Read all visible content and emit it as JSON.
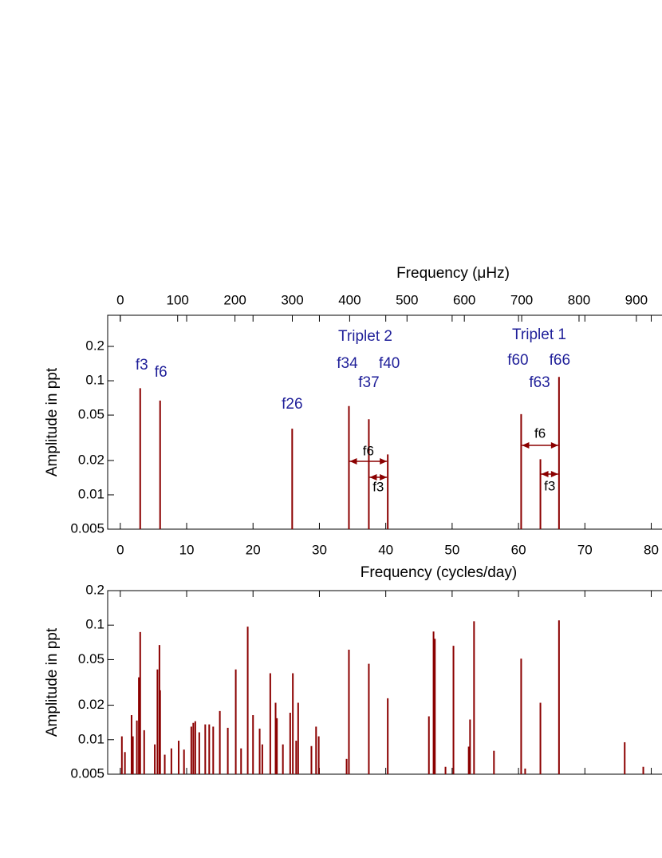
{
  "chart_data": [
    {
      "type": "stem",
      "x_label": "Frequency (cycles/day)",
      "x2_label": "Frequency (μHz)",
      "y_label": "Amplitude in ppt",
      "x": [
        3.0,
        6.0,
        25.9,
        34.45,
        37.45,
        40.3,
        60.4,
        63.3,
        66.1
      ],
      "values": [
        0.086,
        0.067,
        0.038,
        0.06,
        0.046,
        0.0226,
        0.051,
        0.0205,
        0.108
      ],
      "peak_labels": [
        "f3",
        "f6",
        "f26",
        "f34",
        "f37",
        "f40",
        "f60",
        "f63",
        "f66"
      ],
      "group_labels": [
        "Triplet 2",
        "Triplet 1"
      ],
      "spacing_labels": [
        "f6",
        "f3",
        "f6",
        "f3"
      ],
      "color": "#8b0000",
      "label_color": "#1f1f99",
      "log_y": true,
      "grid": false,
      "xlim": [
        -1.9,
        81.5
      ],
      "xticks": [
        0,
        10,
        20,
        30,
        40,
        50,
        60,
        70,
        80
      ],
      "x2lim": [
        -22.0,
        943.3
      ],
      "x2ticks": [
        0,
        100,
        200,
        300,
        400,
        500,
        600,
        700,
        800,
        900
      ],
      "ylim": [
        0.005,
        0.375
      ],
      "yticks": [
        0.005,
        0.01,
        0.02,
        0.05,
        0.1,
        0.2
      ]
    },
    {
      "type": "stem",
      "y_label": "Amplitude in ppt",
      "x": [
        0.24,
        0.7,
        1.7,
        1.9,
        2.5,
        2.8,
        3.0,
        3.6,
        5.2,
        5.6,
        5.9,
        6.0,
        6.7,
        7.7,
        8.8,
        9.6,
        10.7,
        11.0,
        11.3,
        11.9,
        12.8,
        13.4,
        14.0,
        15.0,
        16.2,
        17.4,
        18.2,
        19.2,
        20.0,
        21.0,
        21.4,
        22.6,
        23.4,
        23.6,
        24.5,
        25.6,
        26.0,
        26.5,
        26.8,
        28.8,
        29.5,
        29.9,
        34.1,
        34.45,
        37.45,
        40.3,
        46.5,
        47.2,
        47.3,
        47.4,
        49.0,
        50.2,
        52.5,
        52.7,
        53.3,
        56.3,
        60.4,
        61.0,
        63.3,
        66.1,
        76.0,
        78.8
      ],
      "values": [
        0.0107,
        0.0078,
        0.0164,
        0.0107,
        0.0147,
        0.035,
        0.087,
        0.0121,
        0.0091,
        0.041,
        0.067,
        0.027,
        0.0074,
        0.0084,
        0.0098,
        0.0082,
        0.013,
        0.014,
        0.0145,
        0.0116,
        0.0136,
        0.0136,
        0.013,
        0.0178,
        0.0127,
        0.041,
        0.0084,
        0.097,
        0.0164,
        0.0125,
        0.0091,
        0.038,
        0.021,
        0.0154,
        0.0091,
        0.0172,
        0.038,
        0.0098,
        0.021,
        0.0088,
        0.013,
        0.0107,
        0.0068,
        0.061,
        0.046,
        0.023,
        0.016,
        0.088,
        0.022,
        0.076,
        0.0058,
        0.066,
        0.0087,
        0.015,
        0.108,
        0.008,
        0.051,
        0.0056,
        0.021,
        0.11,
        0.0095,
        0.0058
      ],
      "color": "#8b0000",
      "log_y": true,
      "grid": false,
      "xlim": [
        -1.9,
        81.5
      ],
      "xticks": [
        0,
        10,
        20,
        30,
        40,
        50,
        60,
        70,
        80
      ],
      "ylim": [
        0.005,
        0.2
      ],
      "yticks": [
        0.005,
        0.01,
        0.02,
        0.05,
        0.1,
        0.2
      ]
    }
  ]
}
